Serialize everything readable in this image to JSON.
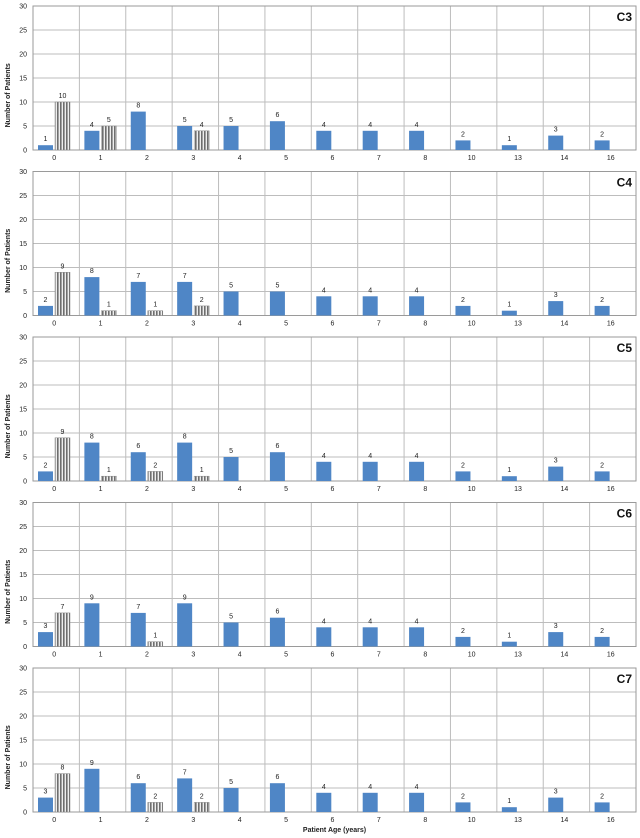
{
  "chart_data": [
    {
      "type": "bar",
      "title": "C3",
      "ylabel": "Number of Patients",
      "xlabel": "",
      "ylim": [
        0,
        30
      ],
      "yticks": [
        0,
        5,
        10,
        15,
        20,
        25,
        30
      ],
      "grid": true,
      "categories": [
        "0",
        "1",
        "2",
        "3",
        "4",
        "5",
        "6",
        "7",
        "8",
        "10",
        "13",
        "14",
        "16"
      ],
      "series": [
        {
          "values": [
            1,
            4,
            8,
            5,
            5,
            6,
            4,
            4,
            4,
            2,
            1,
            3,
            2
          ],
          "color": "#4f86c6",
          "pattern": "solid"
        },
        {
          "values": [
            10,
            5,
            null,
            4,
            null,
            null,
            null,
            null,
            null,
            null,
            null,
            null,
            null
          ],
          "color": "#7a7a7a",
          "pattern": "striped"
        }
      ]
    },
    {
      "type": "bar",
      "title": "C4",
      "ylabel": "Number of Patients",
      "xlabel": "",
      "ylim": [
        0,
        30
      ],
      "yticks": [
        0,
        5,
        10,
        15,
        20,
        25,
        30
      ],
      "grid": true,
      "categories": [
        "0",
        "1",
        "2",
        "3",
        "4",
        "5",
        "6",
        "7",
        "8",
        "10",
        "13",
        "14",
        "16"
      ],
      "series": [
        {
          "values": [
            2,
            8,
            7,
            7,
            5,
            5,
            4,
            4,
            4,
            2,
            1,
            3,
            2
          ],
          "color": "#4f86c6",
          "pattern": "solid"
        },
        {
          "values": [
            9,
            1,
            1,
            2,
            null,
            null,
            null,
            null,
            null,
            null,
            null,
            null,
            null
          ],
          "color": "#7a7a7a",
          "pattern": "striped"
        }
      ]
    },
    {
      "type": "bar",
      "title": "C5",
      "ylabel": "Number of Patients",
      "xlabel": "",
      "ylim": [
        0,
        30
      ],
      "yticks": [
        0,
        5,
        10,
        15,
        20,
        25,
        30
      ],
      "grid": true,
      "categories": [
        "0",
        "1",
        "2",
        "3",
        "4",
        "5",
        "6",
        "7",
        "8",
        "10",
        "13",
        "14",
        "16"
      ],
      "series": [
        {
          "values": [
            2,
            8,
            6,
            8,
            5,
            6,
            4,
            4,
            4,
            2,
            1,
            3,
            2
          ],
          "color": "#4f86c6",
          "pattern": "solid"
        },
        {
          "values": [
            9,
            1,
            2,
            1,
            null,
            null,
            null,
            null,
            null,
            null,
            null,
            null,
            null
          ],
          "color": "#7a7a7a",
          "pattern": "striped"
        }
      ]
    },
    {
      "type": "bar",
      "title": "C6",
      "ylabel": "Number of Patients",
      "xlabel": "",
      "ylim": [
        0,
        30
      ],
      "yticks": [
        0,
        5,
        10,
        15,
        20,
        25,
        30
      ],
      "grid": true,
      "categories": [
        "0",
        "1",
        "2",
        "3",
        "4",
        "5",
        "6",
        "7",
        "8",
        "10",
        "13",
        "14",
        "16"
      ],
      "series": [
        {
          "values": [
            3,
            9,
            7,
            9,
            5,
            6,
            4,
            4,
            4,
            2,
            1,
            3,
            2
          ],
          "color": "#4f86c6",
          "pattern": "solid"
        },
        {
          "values": [
            7,
            null,
            1,
            null,
            null,
            null,
            null,
            null,
            null,
            null,
            null,
            null,
            null
          ],
          "color": "#7a7a7a",
          "pattern": "striped"
        }
      ]
    },
    {
      "type": "bar",
      "title": "C7",
      "ylabel": "Number of Patients",
      "xlabel": "Patient Age (years)",
      "ylim": [
        0,
        30
      ],
      "yticks": [
        0,
        5,
        10,
        15,
        20,
        25,
        30
      ],
      "grid": true,
      "categories": [
        "0",
        "1",
        "2",
        "3",
        "4",
        "5",
        "6",
        "7",
        "8",
        "10",
        "13",
        "14",
        "16"
      ],
      "series": [
        {
          "values": [
            3,
            9,
            6,
            7,
            5,
            6,
            4,
            4,
            4,
            2,
            1,
            3,
            2
          ],
          "color": "#4f86c6",
          "pattern": "solid"
        },
        {
          "values": [
            8,
            null,
            2,
            2,
            null,
            null,
            null,
            null,
            null,
            null,
            null,
            null,
            null
          ],
          "color": "#7a7a7a",
          "pattern": "striped"
        }
      ]
    }
  ]
}
